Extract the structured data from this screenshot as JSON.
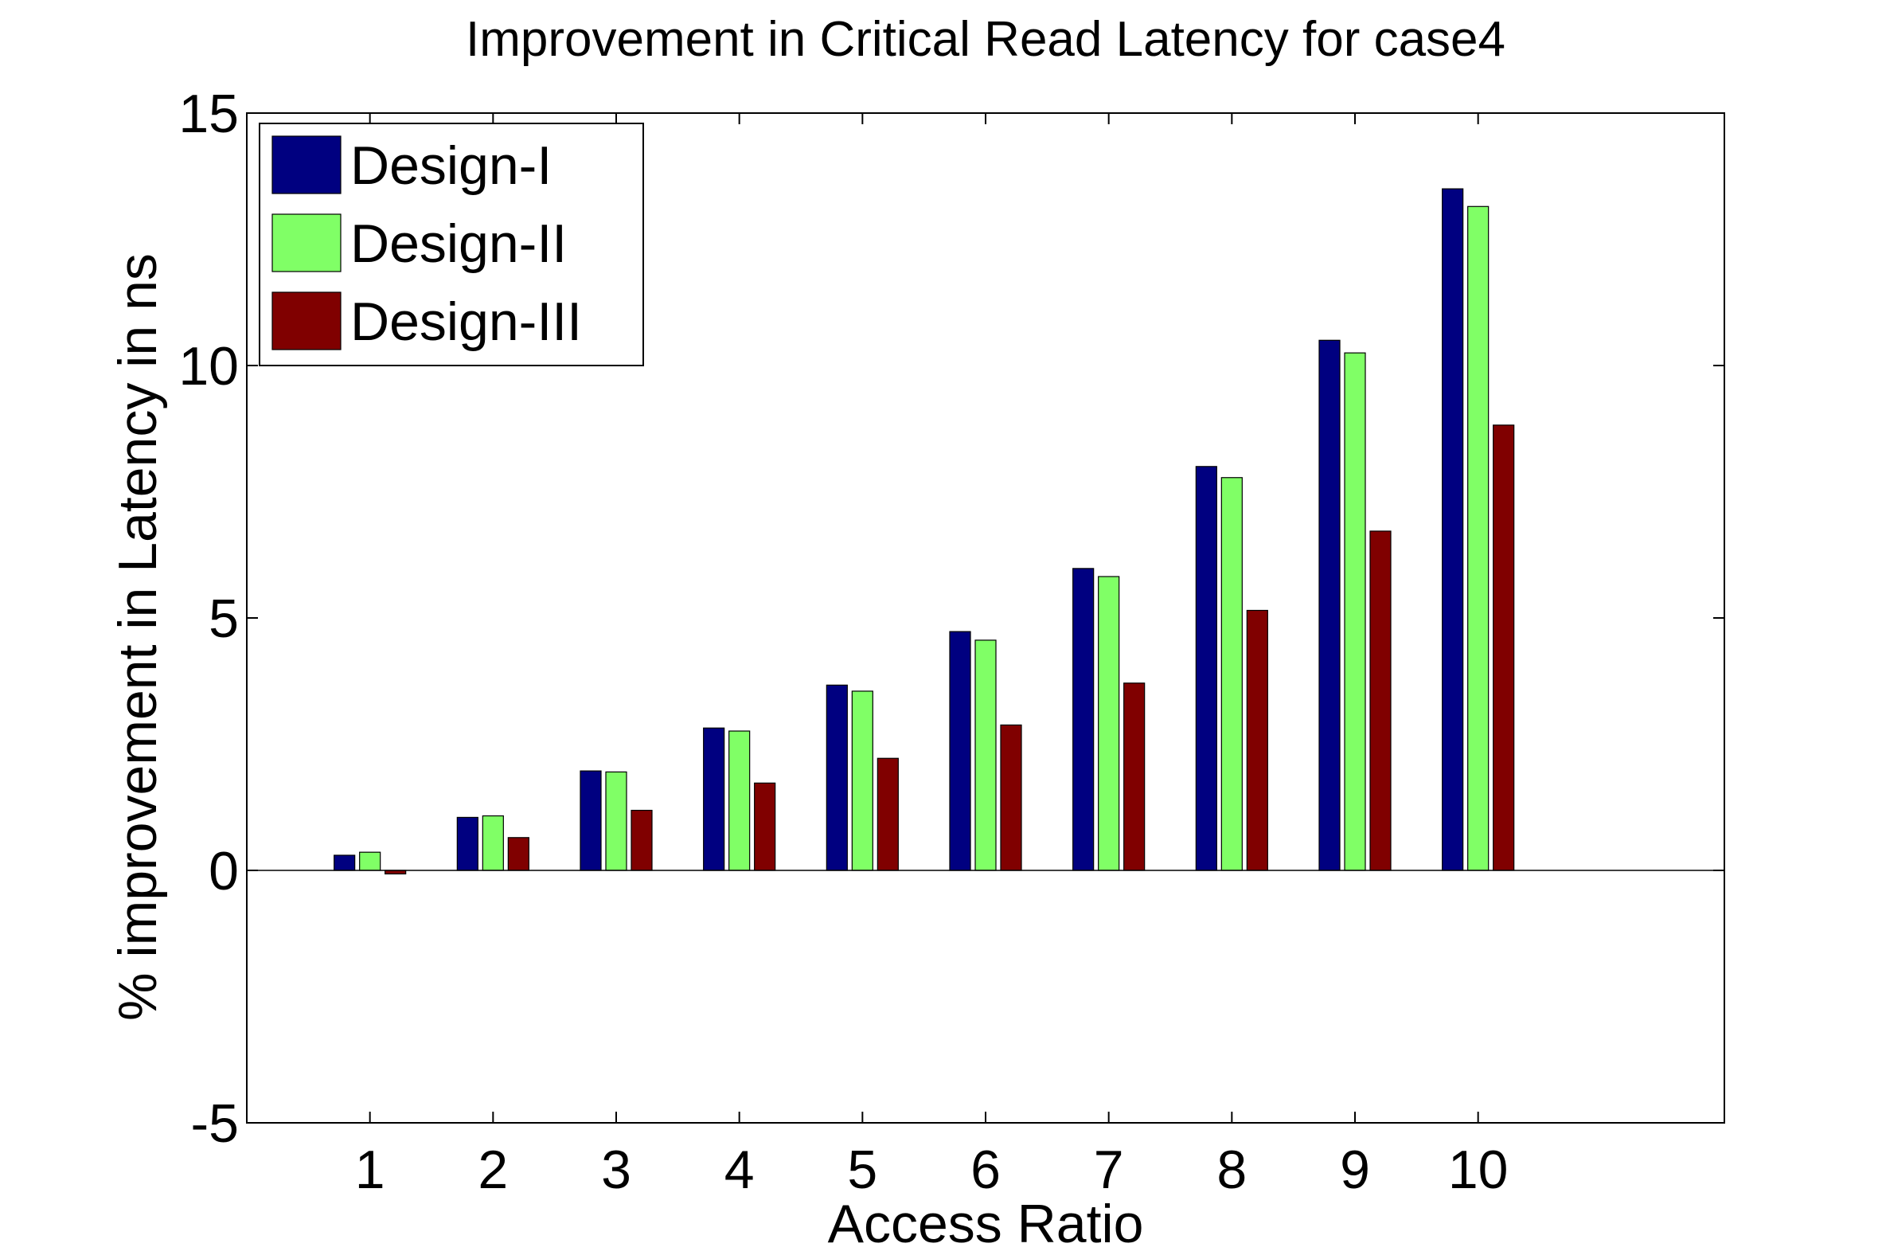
{
  "chart_data": {
    "type": "bar",
    "title": "Improvement in Critical Read Latency for case4",
    "xlabel": "Access Ratio",
    "ylabel": "% improvement in Latency in ns",
    "categories": [
      "1",
      "2",
      "3",
      "4",
      "5",
      "6",
      "7",
      "8",
      "9",
      "10"
    ],
    "xlim": [
      0,
      12
    ],
    "ylim": [
      -5,
      15
    ],
    "yticks": [
      -5,
      0,
      5,
      10,
      15
    ],
    "ytick_labels": [
      "-5",
      "0",
      "5",
      "10",
      "15"
    ],
    "grid": false,
    "legend_position": "top-left",
    "series": [
      {
        "name": "Design-I",
        "color": "#000080",
        "values": [
          0.3,
          1.05,
          1.97,
          2.82,
          3.67,
          4.73,
          5.98,
          8.0,
          10.5,
          13.5
        ]
      },
      {
        "name": "Design-II",
        "color": "#80ff66",
        "values": [
          0.36,
          1.08,
          1.95,
          2.76,
          3.55,
          4.56,
          5.82,
          7.78,
          10.25,
          13.15
        ]
      },
      {
        "name": "Design-III",
        "color": "#800000",
        "values": [
          -0.07,
          0.65,
          1.19,
          1.73,
          2.22,
          2.88,
          3.71,
          5.15,
          6.72,
          8.82
        ]
      }
    ]
  }
}
